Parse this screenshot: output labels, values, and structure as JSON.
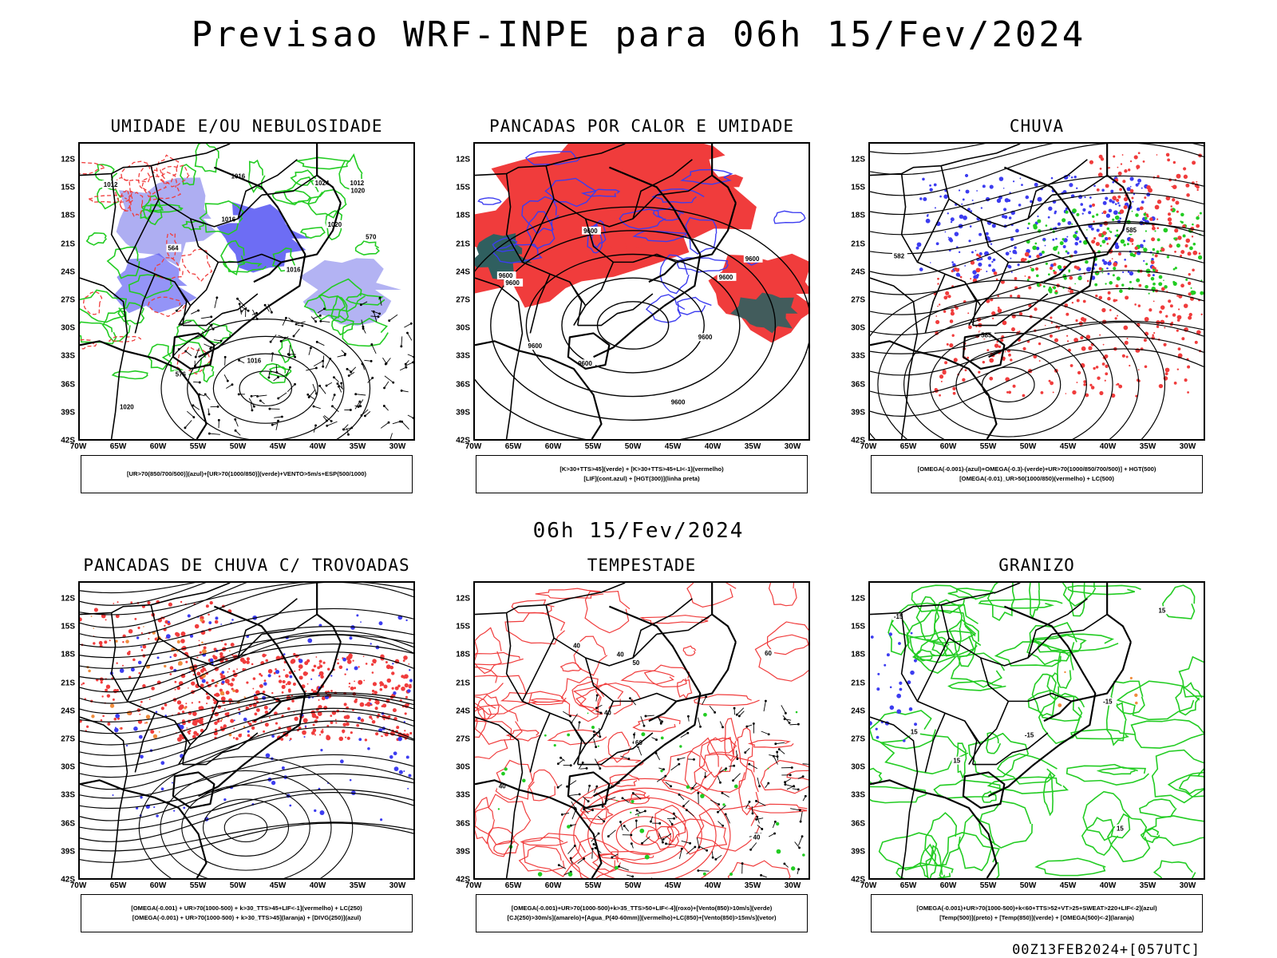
{
  "header": {
    "title": "Previsao WRF-INPE  para 06h 15/Fev/2024"
  },
  "mid_title": "06h 15/Fev/2024",
  "footer": "00Z13FEB2024+[057UTC]",
  "axes": {
    "lat_labels": [
      "12S",
      "15S",
      "18S",
      "21S",
      "24S",
      "27S",
      "30S",
      "33S",
      "36S",
      "39S",
      "42S"
    ],
    "lon_labels": [
      "70W",
      "65W",
      "60W",
      "55W",
      "50W",
      "45W",
      "40W",
      "35W",
      "30W"
    ]
  },
  "colors": {
    "red": "#f03c3c",
    "green": "#22cc22",
    "blue": "#3c3cf0",
    "lavender": "#a0a0f0",
    "teal": "#2f5f5f",
    "orange": "#f08c3c",
    "black": "#000000"
  },
  "panels": [
    {
      "id": "umidade",
      "title": "UMIDADE E/OU NEBULOSIDADE",
      "legend": [
        "[UR>70(850/700/500)](azul)+[UR>70(1000/850)](verde)+VENTO>5m/s+ESP(500/1000)"
      ],
      "contour_labels": [
        "1012",
        "1016",
        "1016",
        "1016",
        "1020",
        "1020",
        "1024",
        "1016",
        "1020",
        "1012",
        "570",
        "576",
        "564"
      ]
    },
    {
      "id": "pancadas-calor",
      "title": "PANCADAS POR CALOR E UMIDADE",
      "legend": [
        "[K>30+TTS>45](verde) + [K>30+TTS>45+LI<-1](vermelho)",
        "[LIF](cont.azul) + [HGT(300)](linha preta)"
      ],
      "contour_labels": [
        "9600",
        "9600",
        "9600",
        "9600",
        "9600",
        "9600",
        "9600",
        "9600",
        "9600"
      ]
    },
    {
      "id": "chuva",
      "title": "CHUVA",
      "legend": [
        "[OMEGA(-0.001)-(azul)+OMEGA(-0.3)-(verde)+UR>70(1000/850/700/500)] + HGT(500)",
        "[OMEGA(-0.01)_UR>50(1000/850)(vermelho) + LC(500)"
      ],
      "contour_labels": [
        "582",
        "585",
        "585"
      ]
    },
    {
      "id": "pancadas-trovoadas",
      "title": "PANCADAS DE CHUVA C/ TROVOADAS",
      "legend": [
        "[OMEGA(-0.001) + UR>70(1000-500) + k>30_TTS>45+LIF<-1](vermelho) + LC(250)",
        "[OMEGA(-0.001) + UR>70(1000-500) + k>30_TTS>45](laranja) + [DIVG(250)](azul)"
      ],
      "contour_labels": []
    },
    {
      "id": "tempestade",
      "title": "TEMPESTADE",
      "legend": [
        "[OMEGA(-0.001)+UR>70(1000-500)+k>35_TTS>50+LIF<-4](roxo)+[Vento(850)>10m/s](verde)",
        "[CJ(250)>30m/s](amarelo)+[Agua_P(40-60mm)](vermelho)+LC(850)+[Vento(850)>15m/s](vetor)"
      ],
      "contour_labels": [
        "40",
        "40",
        "40",
        "50",
        "40",
        "40",
        "60",
        "60"
      ]
    },
    {
      "id": "granizo",
      "title": "GRANIZO",
      "legend": [
        "[OMEGA(-0.001)+UR>70(1000-500)+k<60+TTS>52+VT>25+SWEAT>220+LIF<-2](azul)",
        "[Temp(500)](preto) + [Temp(850)](verde) + [OMEGA(500)<-2](laranja)"
      ],
      "contour_labels": [
        "-15",
        "-15",
        "-15",
        "15",
        "15",
        "15",
        "15"
      ]
    }
  ]
}
